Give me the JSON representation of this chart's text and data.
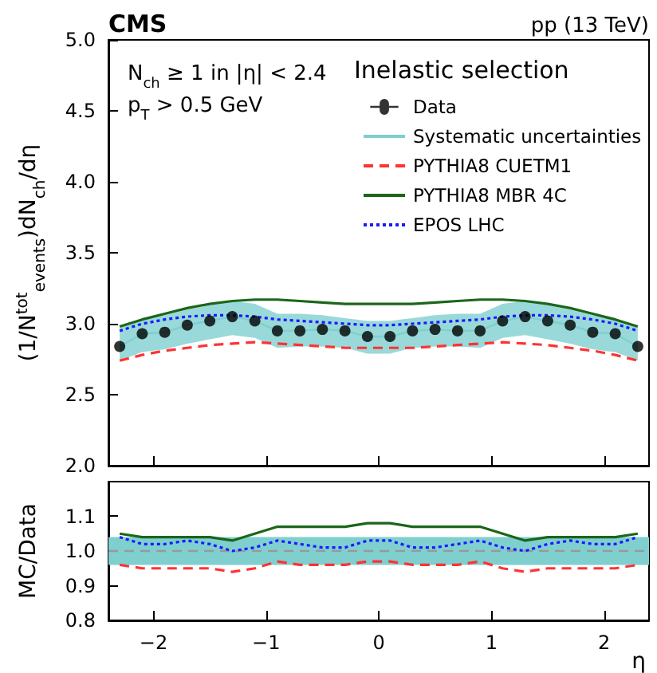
{
  "chart_data": [
    {
      "type": "line",
      "title": "CMS",
      "ylabel": "(1/N$^{tot}$$_{events}$)dN$_{ch}$/dη",
      "legend_title": "Inelastic selection",
      "legend": "top right",
      "tick_labels": "y",
      "annotations": [
        "pp (13 TeV)",
        "N$_{ch}$ ≥ 1 in |η| < 2.4",
        "p$_{T}$ > 0.5 GeV"
      ],
      "x": [
        -2.3,
        -2.1,
        -1.9,
        -1.7,
        -1.5,
        -1.3,
        -1.1,
        -0.9,
        -0.7,
        -0.5,
        -0.3,
        -0.1,
        0.1,
        0.3,
        0.5,
        0.7,
        0.9,
        1.1,
        1.3,
        1.5,
        1.7,
        1.9,
        2.1,
        2.3
      ],
      "xlim": [
        -2.4,
        2.4
      ],
      "xticks": [
        -2,
        -1,
        0,
        1,
        2
      ],
      "ylim": [
        2,
        5
      ],
      "yticks": [
        {
          "value": 2,
          "label": "2.0"
        },
        {
          "value": 2.5,
          "label": "2.5"
        },
        {
          "value": 3,
          "label": "3.0"
        },
        {
          "value": 3.5,
          "label": "3.5"
        },
        {
          "value": 4,
          "label": "4.0"
        },
        {
          "value": 4.5,
          "label": "4.5"
        },
        {
          "value": 5,
          "label": "5.0"
        }
      ],
      "series": [
        {
          "name": "Data",
          "type": "scatter",
          "marker": "circle",
          "color": "#000000",
          "values": [
            2.84,
            2.93,
            2.94,
            2.99,
            3.02,
            3.05,
            3.02,
            2.95,
            2.95,
            2.96,
            2.95,
            2.91,
            2.91,
            2.95,
            2.96,
            2.95,
            2.95,
            3.02,
            3.05,
            3.02,
            2.99,
            2.94,
            2.93,
            2.84
          ]
        },
        {
          "name": "Systematic uncertainties",
          "type": "line",
          "color": "#7fcfcf",
          "values": [
            2.84,
            2.93,
            2.94,
            2.99,
            3.02,
            3.05,
            3.02,
            2.95,
            2.95,
            2.96,
            2.95,
            2.91,
            2.91,
            2.95,
            2.96,
            2.95,
            2.95,
            3.02,
            3.05,
            3.02,
            2.99,
            2.94,
            2.93,
            2.84
          ],
          "lower": [
            2.74,
            2.8,
            2.82,
            2.86,
            2.89,
            2.92,
            2.9,
            2.83,
            2.84,
            2.84,
            2.83,
            2.79,
            2.79,
            2.83,
            2.84,
            2.84,
            2.83,
            2.9,
            2.92,
            2.89,
            2.86,
            2.82,
            2.8,
            2.74
          ],
          "upper": [
            2.97,
            3.04,
            3.06,
            3.1,
            3.13,
            3.16,
            3.14,
            3.07,
            3.07,
            3.06,
            3.04,
            3.02,
            3.02,
            3.04,
            3.06,
            3.07,
            3.07,
            3.14,
            3.16,
            3.13,
            3.1,
            3.06,
            3.04,
            2.97
          ]
        },
        {
          "name": "PYTHIA8 CUETM1",
          "line_style": "dashed",
          "color": "#ff3333",
          "values": [
            2.74,
            2.78,
            2.81,
            2.83,
            2.85,
            2.86,
            2.87,
            2.86,
            2.85,
            2.84,
            2.83,
            2.83,
            2.83,
            2.83,
            2.84,
            2.85,
            2.86,
            2.87,
            2.86,
            2.85,
            2.83,
            2.81,
            2.78,
            2.74
          ]
        },
        {
          "name": "PYTHIA8 MBR 4C",
          "line_style": "solid",
          "color": "#1a661a",
          "values": [
            2.98,
            3.03,
            3.07,
            3.11,
            3.14,
            3.16,
            3.17,
            3.17,
            3.16,
            3.15,
            3.14,
            3.14,
            3.14,
            3.14,
            3.15,
            3.16,
            3.17,
            3.17,
            3.16,
            3.14,
            3.11,
            3.07,
            3.03,
            2.98
          ]
        },
        {
          "name": "EPOS LHC",
          "line_style": "dotted",
          "color": "#1a1aff",
          "values": [
            2.95,
            3.0,
            3.03,
            3.05,
            3.06,
            3.06,
            3.05,
            3.03,
            3.02,
            3.01,
            3.0,
            2.99,
            2.99,
            3.0,
            3.01,
            3.02,
            3.03,
            3.05,
            3.06,
            3.06,
            3.05,
            3.03,
            3.0,
            2.95
          ]
        }
      ]
    },
    {
      "type": "line",
      "ylabel": "MC/Data",
      "xlabel": "η",
      "legend": false,
      "x": [
        -2.3,
        -2.1,
        -1.9,
        -1.7,
        -1.5,
        -1.3,
        -1.1,
        -0.9,
        -0.7,
        -0.5,
        -0.3,
        -0.1,
        0.1,
        0.3,
        0.5,
        0.7,
        0.9,
        1.1,
        1.3,
        1.5,
        1.7,
        1.9,
        2.1,
        2.3
      ],
      "xlim": [
        -2.4,
        2.4
      ],
      "xticks": [
        {
          "value": -2,
          "label": "−2"
        },
        {
          "value": -1,
          "label": "−1"
        },
        0,
        1,
        2
      ],
      "ylim": [
        0.8,
        1.2
      ],
      "yticks": [
        0.8,
        0.9,
        {
          "value": 1,
          "label": "1.0"
        },
        1.1
      ],
      "ref_lines": [
        {
          "axis": "y",
          "value": 1,
          "color": "#999999",
          "line_style": "dashed"
        }
      ],
      "bands": [
        {
          "axis": "y",
          "from": 0.96,
          "to": 1.04,
          "color": "#7fcfcf"
        }
      ],
      "series": [
        {
          "line_style": "dashed",
          "color": "#ff3333",
          "values": [
            0.96,
            0.95,
            0.95,
            0.95,
            0.95,
            0.94,
            0.95,
            0.97,
            0.96,
            0.96,
            0.96,
            0.97,
            0.97,
            0.96,
            0.96,
            0.96,
            0.97,
            0.95,
            0.94,
            0.95,
            0.95,
            0.95,
            0.95,
            0.96
          ]
        },
        {
          "line_style": "solid",
          "color": "#1a661a",
          "values": [
            1.05,
            1.04,
            1.04,
            1.04,
            1.04,
            1.03,
            1.05,
            1.07,
            1.07,
            1.07,
            1.07,
            1.08,
            1.08,
            1.07,
            1.07,
            1.07,
            1.07,
            1.05,
            1.03,
            1.04,
            1.04,
            1.04,
            1.04,
            1.05
          ]
        },
        {
          "line_style": "dotted",
          "color": "#1a1aff",
          "values": [
            1.04,
            1.02,
            1.02,
            1.03,
            1.02,
            1.0,
            1.01,
            1.03,
            1.02,
            1.01,
            1.01,
            1.03,
            1.03,
            1.01,
            1.01,
            1.02,
            1.03,
            1.01,
            1.0,
            1.02,
            1.03,
            1.02,
            1.02,
            1.04
          ]
        }
      ]
    }
  ]
}
